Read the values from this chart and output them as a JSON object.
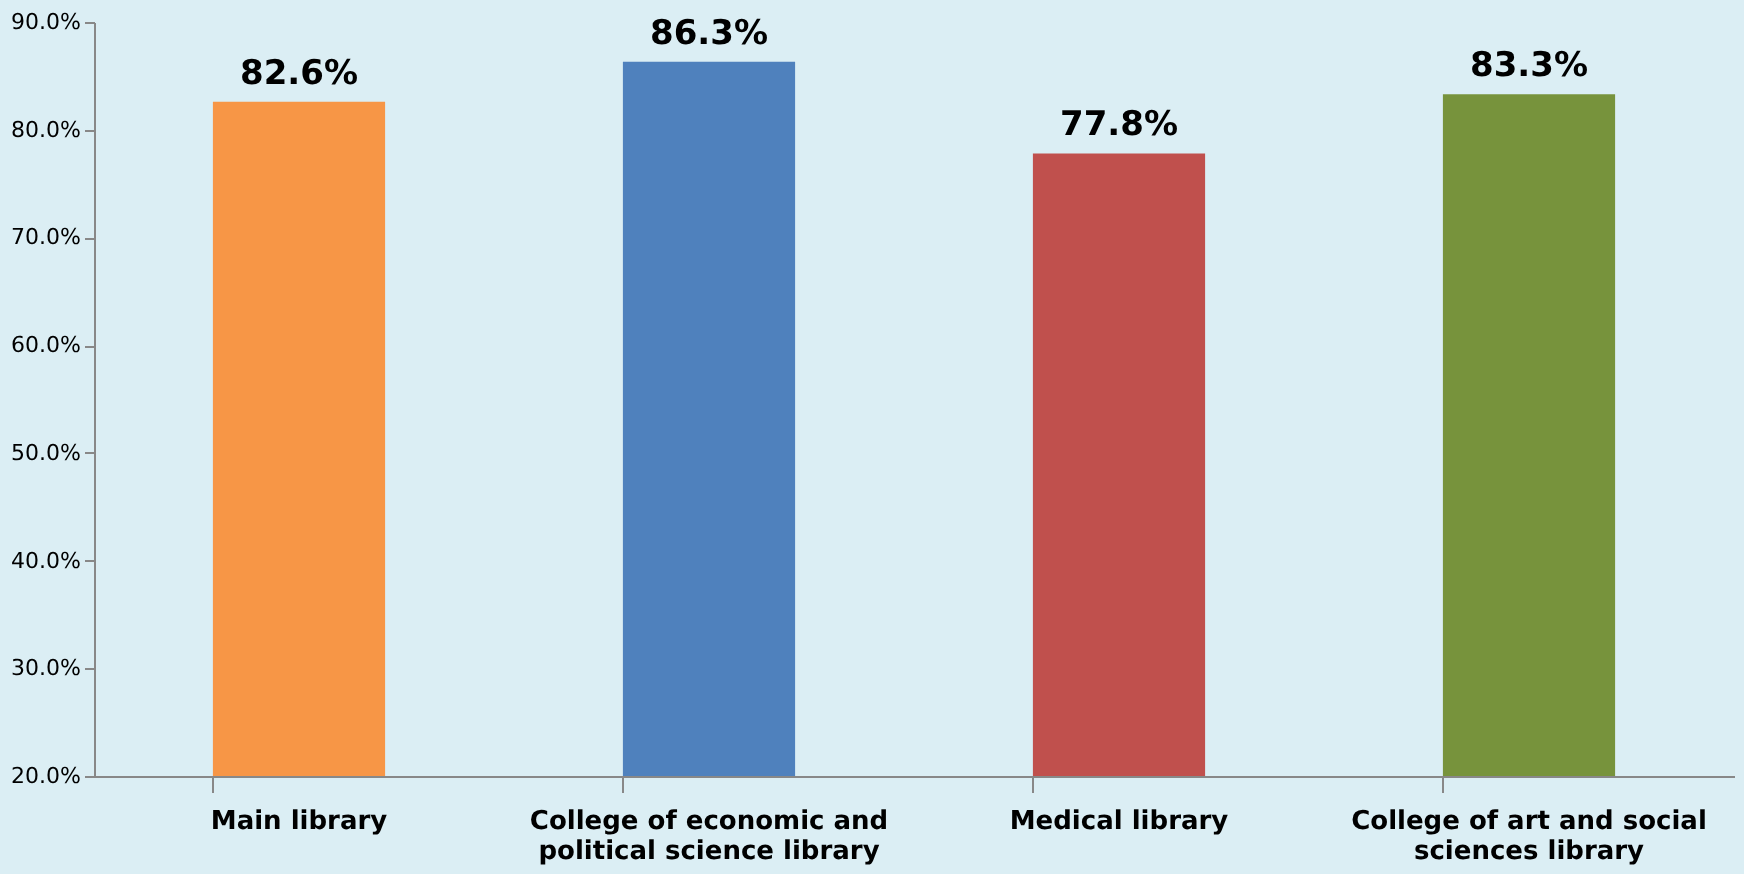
{
  "chart_data": {
    "type": "bar",
    "categories": [
      "Main library",
      "College of economic and political science library",
      "Medical library",
      "College of art and social sciences library"
    ],
    "values": [
      82.6,
      86.3,
      77.8,
      83.3
    ],
    "colors": [
      "#f79646",
      "#4f81bd",
      "#c0504d",
      "#77933c"
    ],
    "value_labels": [
      "82.6%",
      "86.3%",
      "77.8%",
      "83.3%"
    ],
    "ylim": [
      20,
      90
    ],
    "yticks": [
      {
        "value": 20,
        "label": "20.0%"
      },
      {
        "value": 30,
        "label": "30.0%"
      },
      {
        "value": 40,
        "label": "40.0%"
      },
      {
        "value": 50,
        "label": "50.0%"
      },
      {
        "value": 60,
        "label": "60.0%"
      },
      {
        "value": 70,
        "label": "70.0%"
      },
      {
        "value": 80,
        "label": "80.0%"
      },
      {
        "value": 90,
        "label": "90.0%"
      }
    ],
    "grid": false
  }
}
